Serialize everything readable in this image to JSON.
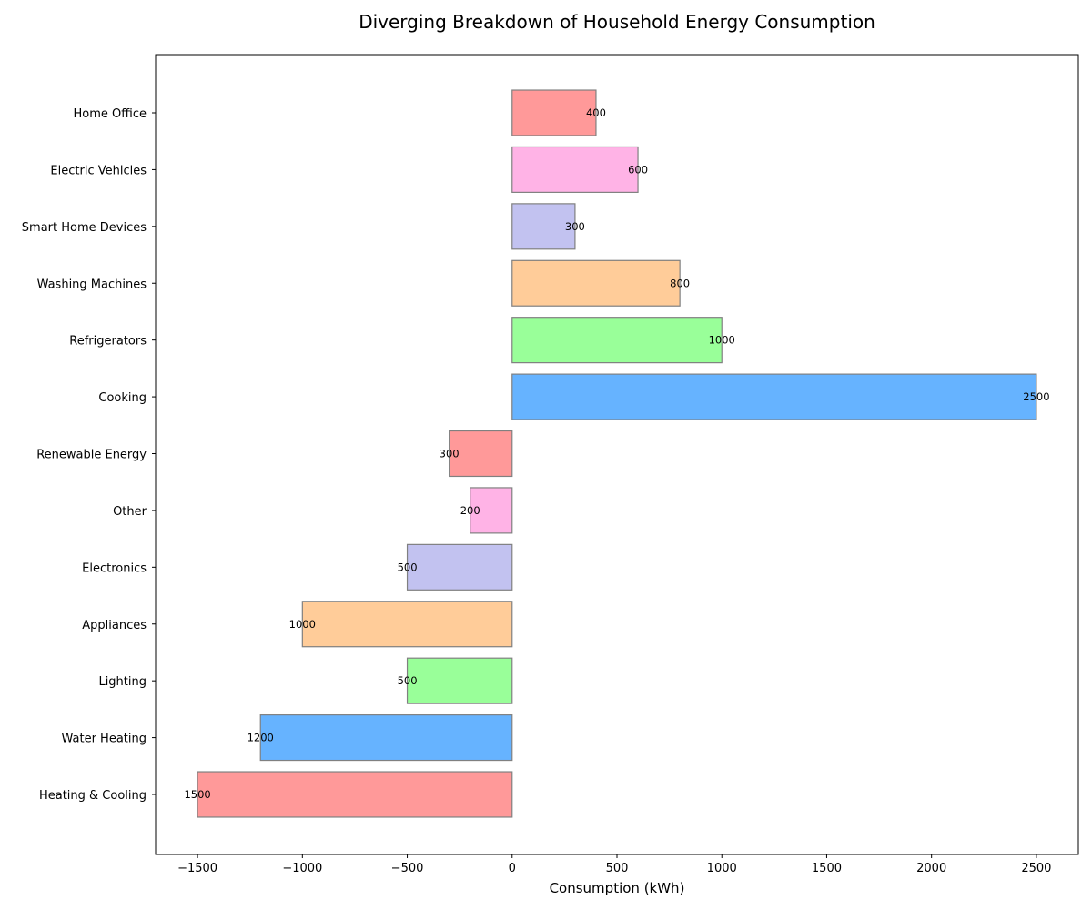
{
  "chart_data": {
    "type": "bar",
    "orientation": "horizontal",
    "title": "Diverging Breakdown of Household Energy Consumption",
    "xlabel": "Consumption (kWh)",
    "ylabel": "",
    "xlim": [
      -1700,
      2700
    ],
    "xticks": [
      -1500,
      -1000,
      -500,
      0,
      500,
      1000,
      1500,
      2000,
      2500
    ],
    "xtick_labels": [
      "−1500",
      "−1000",
      "−500",
      "0",
      "500",
      "1000",
      "1500",
      "2000",
      "2500"
    ],
    "grid": false,
    "categories": [
      "Heating & Cooling",
      "Water Heating",
      "Lighting",
      "Appliances",
      "Electronics",
      "Other",
      "Renewable Energy",
      "Cooking",
      "Refrigerators",
      "Washing Machines",
      "Smart Home Devices",
      "Electric Vehicles",
      "Home Office"
    ],
    "values": [
      -1500,
      -1200,
      -500,
      -1000,
      -500,
      -200,
      -300,
      2500,
      1000,
      800,
      300,
      600,
      400
    ],
    "data_labels": [
      "1500",
      "1200",
      "500",
      "1000",
      "500",
      "200",
      "300",
      "2500",
      "1000",
      "800",
      "300",
      "600",
      "400"
    ],
    "colors": [
      "#ff9999",
      "#66b3ff",
      "#99ff99",
      "#ffcc99",
      "#c2c2f0",
      "#ffb3e6",
      "#ff9999",
      "#66b3ff",
      "#99ff99",
      "#ffcc99",
      "#c2c2f0",
      "#ffb3e6",
      "#ff9999"
    ],
    "edge_color": "#808080"
  }
}
